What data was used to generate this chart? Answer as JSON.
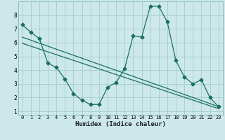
{
  "xlabel": "Humidex (Indice chaleur)",
  "bg_color": "#cde8e8",
  "grid_color": "#a8d0d0",
  "line_color": "#1a6e64",
  "xlim": [
    -0.5,
    23.5
  ],
  "ylim": [
    0.75,
    9.0
  ],
  "yticks": [
    1,
    2,
    3,
    4,
    5,
    6,
    7,
    8
  ],
  "xticks": [
    0,
    1,
    2,
    3,
    4,
    5,
    6,
    7,
    8,
    9,
    10,
    11,
    12,
    13,
    14,
    15,
    16,
    17,
    18,
    19,
    20,
    21,
    22,
    23
  ],
  "series1_x": [
    0,
    1,
    2,
    3,
    4,
    5,
    6,
    7,
    8,
    9,
    10,
    11,
    12,
    13,
    14,
    15,
    16,
    17,
    18,
    19,
    20,
    21,
    22,
    23
  ],
  "series1_y": [
    7.3,
    6.75,
    6.3,
    4.5,
    4.2,
    3.35,
    2.3,
    1.8,
    1.5,
    1.5,
    2.75,
    3.1,
    4.1,
    6.5,
    6.4,
    8.65,
    8.65,
    7.5,
    4.7,
    3.5,
    3.0,
    3.3,
    2.0,
    1.35
  ],
  "series2_x": [
    0,
    23
  ],
  "series2_y": [
    6.4,
    1.35
  ],
  "series3_x": [
    0,
    23
  ],
  "series3_y": [
    5.95,
    1.2
  ]
}
